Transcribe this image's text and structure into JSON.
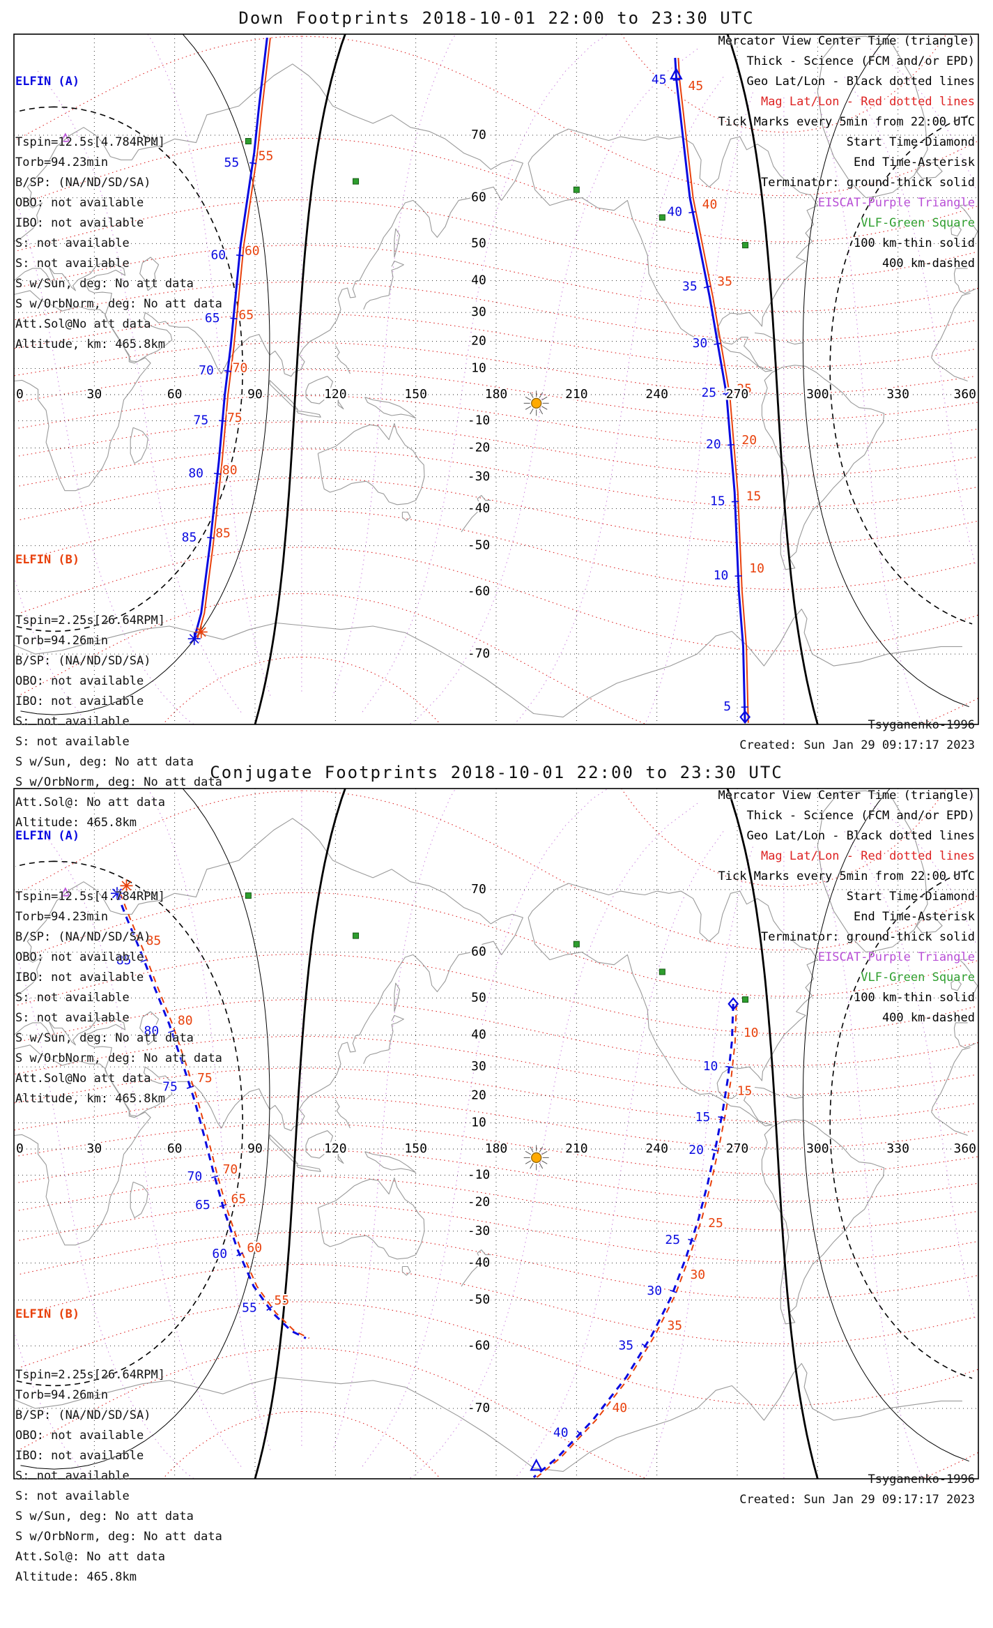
{
  "colors": {
    "elfin_a": "#0a0ae0",
    "elfin_b": "#e8410c",
    "mag_grid": "#dd2222",
    "mag_meridian": "#c97fdd",
    "geo_grid": "#1a1a1a",
    "coast": "#999999",
    "vlf": "#2e9e2e",
    "eiscat": "#b84fd6",
    "sun": "#ffaa00"
  },
  "panels": [
    {
      "title": "Down Footprints 2018-10-01 22:00 to 23:30 UTC",
      "elfin_a": {
        "header": "ELFIN (A)",
        "lines": [
          "Tspin=12.5s[4.784RPM]",
          "Torb=94.23min",
          "B/SP: (NA/ND/SD/SA)",
          "OBO: not available",
          "IBO: not available",
          "S: not available",
          "S: not available",
          "S w/Sun, deg: No att data",
          "S w/OrbNorm, deg: No att data",
          "Att.Sol@No att data",
          "Altitude, km: 465.8km"
        ]
      },
      "elfin_b": {
        "header": "ELFIN (B)",
        "lines": [
          "Tspin=2.25s[26.64RPM]",
          "Torb=94.26min",
          "B/SP: (NA/ND/SD/SA)",
          "OBO: not available",
          "IBO: not available",
          "S: not available",
          "S: not available",
          "S w/Sun, deg: No att data",
          "S w/OrbNorm, deg: No att data",
          "Att.Sol@: No att data",
          "Altitude: 465.8km"
        ]
      },
      "legend": [
        {
          "text": "Mercator View Center Time (triangle)",
          "color": "#000000"
        },
        {
          "text": "Thick - Science (FCM and/or EPD)",
          "color": "#000000"
        },
        {
          "text": "Geo Lat/Lon - Black dotted lines",
          "color": "#000000"
        },
        {
          "text": "Mag Lat/Lon - Red dotted lines",
          "color": "#dd2222"
        },
        {
          "text": "Tick Marks every 5min from 22:00 UTC",
          "color": "#000000"
        },
        {
          "text": "Start Time-Diamond",
          "color": "#000000"
        },
        {
          "text": "End Time-Asterisk",
          "color": "#000000"
        },
        {
          "text": "Terminator: ground-thick solid",
          "color": "#000000"
        },
        {
          "text": "EISCAT-Purple Triangle",
          "color": "#b84fd6"
        },
        {
          "text": "VLF-Green Square",
          "color": "#2e9e2e"
        },
        {
          "text": "100 km-thin solid",
          "color": "#000000"
        },
        {
          "text": "400 km-dashed",
          "color": "#000000"
        }
      ],
      "footer": {
        "model": "Tsyganenko-1996",
        "created": "Created: Sun Jan 29 09:17:17 2023"
      }
    },
    {
      "title": "Conjugate Footprints 2018-10-01 22:00 to 23:30 UTC",
      "elfin_a": {
        "header": "ELFIN (A)",
        "lines": [
          "Tspin=12.5s[4.784RPM]",
          "Torb=94.23min",
          "B/SP: (NA/ND/SD/SA)",
          "OBO: not available",
          "IBO: not available",
          "S: not available",
          "S: not available",
          "S w/Sun, deg: No att data",
          "S w/OrbNorm, deg: No att data",
          "Att.Sol@No att data",
          "Altitude, km: 465.8km"
        ]
      },
      "elfin_b": {
        "header": "ELFIN (B)",
        "lines": [
          "Tspin=2.25s[26.64RPM]",
          "Torb=94.26min",
          "B/SP: (NA/ND/SD/SA)",
          "OBO: not available",
          "IBO: not available",
          "S: not available",
          "S: not available",
          "S w/Sun, deg: No att data",
          "S w/OrbNorm, deg: No att data",
          "Att.Sol@: No att data",
          "Altitude: 465.8km"
        ]
      },
      "legend": [
        {
          "text": "Mercator View Center Time (triangle)",
          "color": "#000000"
        },
        {
          "text": "Thick - Science (FCM and/or EPD)",
          "color": "#000000"
        },
        {
          "text": "Geo Lat/Lon - Black dotted lines",
          "color": "#000000"
        },
        {
          "text": "Mag Lat/Lon - Red dotted lines",
          "color": "#dd2222"
        },
        {
          "text": "Tick Marks every 5min from 22:00 UTC",
          "color": "#000000"
        },
        {
          "text": "Start Time-Diamond",
          "color": "#000000"
        },
        {
          "text": "End Time-Asterisk",
          "color": "#000000"
        },
        {
          "text": "Terminator: ground-thick solid",
          "color": "#000000"
        },
        {
          "text": "EISCAT-Purple Triangle",
          "color": "#b84fd6"
        },
        {
          "text": "VLF-Green Square",
          "color": "#2e9e2e"
        },
        {
          "text": "100 km-thin solid",
          "color": "#000000"
        },
        {
          "text": "400 km-dashed",
          "color": "#000000"
        }
      ],
      "footer": {
        "model": "Tsyganenko-1996",
        "created": "Created: Sun Jan 29 09:17:17 2023"
      }
    }
  ],
  "chart_data": [
    {
      "type": "map",
      "title": "Down Footprints 2018-10-01 22:00 to 23:30 UTC",
      "projection": "mercator",
      "lon_range": [
        0,
        360
      ],
      "lat_range": [
        -77.4,
        79.6
      ],
      "lon_ticks": [
        0,
        30,
        60,
        90,
        120,
        150,
        180,
        210,
        240,
        270,
        300,
        330,
        360
      ],
      "lat_ticks": [
        70,
        60,
        50,
        40,
        30,
        20,
        10,
        -10,
        -20,
        -30,
        -40,
        -50,
        -60,
        -70
      ],
      "lat_tick_lon": 173.5,
      "geo_grid": {
        "lat_step": 10,
        "lon_step": 30
      },
      "mag_pole": {
        "lat": 80.4,
        "lon": 287.4
      },
      "mag_lat_contours": [
        -80,
        -70,
        -60,
        -50,
        -40,
        -30,
        -20,
        -10,
        0,
        10,
        20,
        30,
        40,
        50,
        60,
        70,
        80
      ],
      "mag_meridians_step": 30,
      "sun": {
        "lon": 195,
        "lat": -3.3
      },
      "terminator": {
        "sub_solar_lon": 195,
        "sub_solar_lat": -3.3,
        "rings": [
          {
            "radius_deg": 90,
            "style": "ground-thick-solid"
          },
          {
            "radius_deg": 100.1,
            "style": "100km-thin-solid"
          },
          {
            "radius_deg": 109.9,
            "style": "400km-dashed"
          }
        ]
      },
      "eiscat": {
        "lon": 19.2,
        "lat": 69.6
      },
      "vlf_stations": [
        [
          87.5,
          69.2
        ],
        [
          127.6,
          63
        ],
        [
          210,
          61.5
        ],
        [
          242,
          56
        ],
        [
          273,
          49.6
        ]
      ],
      "tick_minutes_from": "22:00 UTC",
      "tracks": [
        {
          "id": "descending-pass",
          "dashed": false,
          "points": [
            [
              94.5,
              79.5
            ],
            [
              91.5,
              73.5
            ],
            [
              89.7,
              67.6
            ],
            [
              84.6,
              49.6
            ],
            [
              80.9,
              18.1
            ],
            [
              78.7,
              0
            ],
            [
              76.5,
              -24.8
            ],
            [
              73.2,
              -49.6
            ],
            [
              69.9,
              -63.9
            ],
            [
              67.3,
              -67.9
            ]
          ],
          "a_ticks": [
            {
              "t": 55,
              "lat": 66
            },
            {
              "t": 60,
              "lat": 47
            },
            {
              "t": 65,
              "lat": 28
            },
            {
              "t": 70,
              "lat": 9
            },
            {
              "t": 75,
              "lat": -10
            },
            {
              "t": 80,
              "lat": -29
            },
            {
              "t": 85,
              "lat": -48
            }
          ],
          "b_ticks": [
            {
              "t": 55,
              "lat": 67
            },
            {
              "t": 60,
              "lat": 48
            },
            {
              "t": 65,
              "lat": 29
            },
            {
              "t": 70,
              "lat": 10
            },
            {
              "t": 75,
              "lat": -9
            },
            {
              "t": 80,
              "lat": -28
            },
            {
              "t": 85,
              "lat": -47
            }
          ],
          "a_dx": -8,
          "b_dx": 4.5,
          "markers": [
            {
              "type": "asterisk",
              "sat": "A",
              "lon": 67.3,
              "lat": -67.9
            },
            {
              "type": "asterisk",
              "sat": "B",
              "lon": 69.9,
              "lat": -66.9
            }
          ]
        },
        {
          "id": "ascending-pass",
          "dashed": false,
          "points": [
            [
              272.9,
              -77.3
            ],
            [
              272.2,
              -69
            ],
            [
              270.6,
              -60
            ],
            [
              269,
              -35
            ],
            [
              266,
              0
            ],
            [
              259.7,
              35
            ],
            [
              252.3,
              60
            ],
            [
              247.3,
              76.1
            ],
            [
              246.8,
              78
            ]
          ],
          "a_ticks": [
            {
              "t": 5,
              "lat": -75.9
            },
            {
              "t": 10,
              "lat": -56.9
            },
            {
              "t": 15,
              "lat": -37.9
            },
            {
              "t": 20,
              "lat": -18.9
            },
            {
              "t": 25,
              "lat": 0.5
            },
            {
              "t": 30,
              "lat": 19.1
            },
            {
              "t": 35,
              "lat": 38.1
            },
            {
              "t": 40,
              "lat": 57.1
            },
            {
              "t": 45,
              "lat": 76.1
            }
          ],
          "b_ticks": [
            {
              "t": 10,
              "lat": -55.4
            },
            {
              "t": 15,
              "lat": -36.4
            },
            {
              "t": 20,
              "lat": -17.4
            },
            {
              "t": 25,
              "lat": 2
            },
            {
              "t": 35,
              "lat": 39.6
            },
            {
              "t": 40,
              "lat": 58.6
            },
            {
              "t": 45,
              "lat": 75.5
            }
          ],
          "a_dx": -6.5,
          "b_dx": 7,
          "markers": [
            {
              "type": "diamond",
              "sat": "A",
              "lon": 272.9,
              "lat": -76.8
            },
            {
              "type": "triangle",
              "sat": "A",
              "lon": 247.2,
              "lat": 76.6
            }
          ]
        }
      ]
    },
    {
      "type": "map",
      "title": "Conjugate Footprints 2018-10-01 22:00 to 23:30 UTC",
      "projection": "mercator",
      "lon_range": [
        0,
        360
      ],
      "lat_range": [
        -77.4,
        79.6
      ],
      "lon_ticks": [
        0,
        30,
        60,
        90,
        120,
        150,
        180,
        210,
        240,
        270,
        300,
        330,
        360
      ],
      "lat_ticks": [
        70,
        60,
        50,
        40,
        30,
        20,
        10,
        -10,
        -20,
        -30,
        -40,
        -50,
        -60,
        -70
      ],
      "lat_tick_lon": 173.5,
      "geo_grid": {
        "lat_step": 10,
        "lon_step": 30
      },
      "mag_pole": {
        "lat": 80.4,
        "lon": 287.4
      },
      "mag_lat_contours": [
        -80,
        -70,
        -60,
        -50,
        -40,
        -30,
        -20,
        -10,
        0,
        10,
        20,
        30,
        40,
        50,
        60,
        70,
        80
      ],
      "mag_meridians_step": 30,
      "sun": {
        "lon": 195,
        "lat": -3.3
      },
      "terminator": {
        "sub_solar_lon": 195,
        "sub_solar_lat": -3.3,
        "rings": [
          {
            "radius_deg": 90,
            "style": "ground-thick-solid"
          },
          {
            "radius_deg": 100.1,
            "style": "100km-thin-solid"
          },
          {
            "radius_deg": 109.9,
            "style": "400km-dashed"
          }
        ]
      },
      "eiscat": {
        "lon": 19.2,
        "lat": 69.6
      },
      "vlf_stations": [
        [
          87.5,
          69.2
        ],
        [
          127.6,
          63
        ],
        [
          210,
          61.5
        ],
        [
          242,
          56
        ],
        [
          273,
          49.6
        ]
      ],
      "tick_minutes_from": "22:00 UTC",
      "tracks": [
        {
          "id": "conjugate-descending",
          "dashed": true,
          "points": [
            [
              38.5,
              69.5
            ],
            [
              42,
              66
            ],
            [
              47,
              60.5
            ],
            [
              52.5,
              52.5
            ],
            [
              58,
              43
            ],
            [
              63,
              31
            ],
            [
              67.5,
              18
            ],
            [
              71,
              5
            ],
            [
              74.5,
              -9
            ],
            [
              78.5,
              -23
            ],
            [
              83.5,
              -36
            ],
            [
              89.5,
              -46.5
            ],
            [
              96.5,
              -53
            ],
            [
              103.5,
              -57
            ],
            [
              109,
              -58.5
            ]
          ],
          "a_ticks": [
            {
              "t": 55,
              "lat": -52
            },
            {
              "t": 60,
              "lat": -37.4
            },
            {
              "t": 65,
              "lat": -21.2
            },
            {
              "t": 70,
              "lat": -10.6
            },
            {
              "t": 75,
              "lat": 23
            },
            {
              "t": 80,
              "lat": 41
            },
            {
              "t": 85,
              "lat": 58.3
            }
          ],
          "b_ticks": [
            {
              "t": 55,
              "lat": -50.2
            },
            {
              "t": 60,
              "lat": -35.5
            },
            {
              "t": 65,
              "lat": -19
            },
            {
              "t": 70,
              "lat": -8
            },
            {
              "t": 75,
              "lat": 26
            },
            {
              "t": 80,
              "lat": 44
            },
            {
              "t": 85,
              "lat": 62
            }
          ],
          "a_dx": -7.5,
          "b_dx": 6.5,
          "markers": [
            {
              "type": "asterisk",
              "sat": "A",
              "lon": 38.5,
              "lat": 69.5
            },
            {
              "type": "asterisk",
              "sat": "B",
              "lon": 42,
              "lat": 70.5
            }
          ]
        },
        {
          "id": "conjugate-ascending",
          "dashed": true,
          "points": [
            [
              268.5,
              48.5
            ],
            [
              268,
              38
            ],
            [
              266.5,
              26
            ],
            [
              264.5,
              14
            ],
            [
              262,
              1
            ],
            [
              259,
              -13
            ],
            [
              255.5,
              -26
            ],
            [
              251,
              -38
            ],
            [
              245.5,
              -49
            ],
            [
              238,
              -58
            ],
            [
              228.5,
              -65.5
            ],
            [
              216,
              -71.5
            ],
            [
              203,
              -75.5
            ],
            [
              194,
              -77.3
            ]
          ],
          "a_ticks": [
            {
              "t": 10,
              "lat": 30
            },
            {
              "t": 15,
              "lat": 12
            },
            {
              "t": 20,
              "lat": -0.5
            },
            {
              "t": 25,
              "lat": -33
            },
            {
              "t": 30,
              "lat": -47.8
            },
            {
              "t": 35,
              "lat": -60
            },
            {
              "t": 40,
              "lat": -73
            }
          ],
          "b_ticks": [
            {
              "t": 10,
              "lat": 40.5
            },
            {
              "t": 15,
              "lat": 21.5
            },
            {
              "t": 25,
              "lat": -27.5
            },
            {
              "t": 30,
              "lat": -43.5
            },
            {
              "t": 35,
              "lat": -56
            },
            {
              "t": 40,
              "lat": -70
            }
          ],
          "a_dx": -7,
          "b_dx": 7,
          "markers": [
            {
              "type": "diamond",
              "sat": "A",
              "lon": 268.5,
              "lat": 48.5
            },
            {
              "type": "triangle",
              "sat": "A",
              "lon": 195,
              "lat": -76.3
            }
          ]
        }
      ]
    }
  ]
}
